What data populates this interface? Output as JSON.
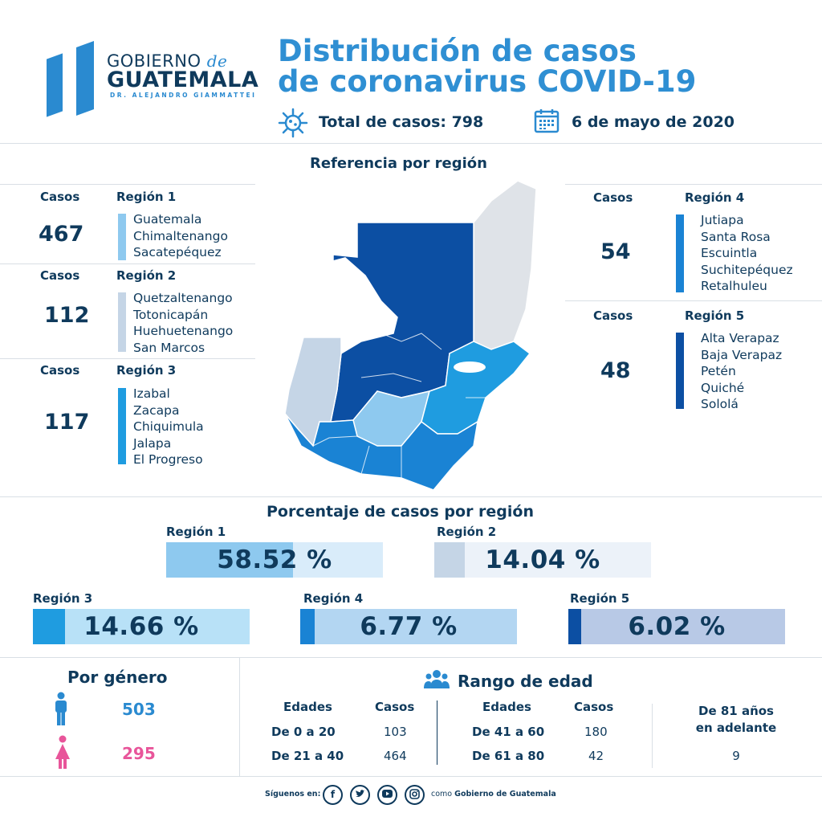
{
  "header": {
    "logo": {
      "line1": "GOBIERNO",
      "de": "de",
      "line2": "GUATEMALA",
      "line3": "DR. ALEJANDRO GIAMMATTEI"
    },
    "title_line1": "Distribución de casos",
    "title_line2": "de coronavirus COVID-19",
    "total_label": "Total de casos: 798",
    "date": "6 de mayo de 2020"
  },
  "reference": {
    "title": "Referencia por región",
    "cases_label": "Casos",
    "regions": [
      {
        "name": "Región 1",
        "cases": "467",
        "color": "#8ec9ef",
        "departments": [
          "Guatemala",
          "Chimaltenango",
          "Sacatepéquez"
        ]
      },
      {
        "name": "Región 2",
        "cases": "112",
        "color": "#c5d5e6",
        "departments": [
          "Quetzaltenango",
          "Totonicapán",
          "Huehuetenango",
          "San Marcos"
        ]
      },
      {
        "name": "Región 3",
        "cases": "117",
        "color": "#1f9ce0",
        "departments": [
          "Izabal",
          "Zacapa",
          "Chiquimula",
          "Jalapa",
          "El Progreso"
        ]
      },
      {
        "name": "Región 4",
        "cases": "54",
        "color": "#1a83d4",
        "departments": [
          "Jutiapa",
          "Santa Rosa",
          "Escuintla",
          "Suchitepéquez",
          "Retalhuleu"
        ]
      },
      {
        "name": "Región 5",
        "cases": "48",
        "color": "#0c4fa3",
        "departments": [
          "Alta Verapaz",
          "Baja Verapaz",
          "Petén",
          "Quiché",
          "Sololá"
        ]
      }
    ]
  },
  "percentages": {
    "title": "Porcentaje de casos por región",
    "items": [
      {
        "label": "Región 1",
        "value": "58.52 %",
        "fraction": 0.5852,
        "color": "#8ec9ef",
        "bg": "#d9ecfa"
      },
      {
        "label": "Región 2",
        "value": "14.04 %",
        "fraction": 0.1404,
        "color": "#c5d5e6",
        "bg": "#ecf2f9"
      },
      {
        "label": "Región 3",
        "value": "14.66 %",
        "fraction": 0.1466,
        "color": "#1f9ce0",
        "bg": "#b8e1f7"
      },
      {
        "label": "Región 4",
        "value": "6.77 %",
        "fraction": 0.0677,
        "color": "#1a83d4",
        "bg": "#b3d6f2"
      },
      {
        "label": "Región 5",
        "value": "6.02 %",
        "fraction": 0.0602,
        "color": "#0c4fa3",
        "bg": "#b8c9e6"
      }
    ]
  },
  "gender": {
    "title": "Por género",
    "male": {
      "value": "503",
      "color": "#2a8ad0",
      "icon": "male-icon"
    },
    "female": {
      "value": "295",
      "color": "#e8559a",
      "icon": "female-icon"
    }
  },
  "age": {
    "title": "Rango de edad",
    "col_age": "Edades",
    "col_cases": "Casos",
    "rows": [
      {
        "range": "De 0 a 20",
        "cases": "103"
      },
      {
        "range": "De 21 a 40",
        "cases": "464"
      },
      {
        "range": "De 41 a 60",
        "cases": "180"
      },
      {
        "range": "De 61 a 80",
        "cases": "42"
      }
    ],
    "over81_line1": "De 81 años",
    "over81_line2": "en adelante",
    "over81_value": "9"
  },
  "footer": {
    "follow": "Síguenos en:",
    "as_prefix": "como",
    "as_name": "Gobierno de Guatemala",
    "icons": [
      "facebook-icon",
      "twitter-icon",
      "youtube-icon",
      "instagram-icon"
    ]
  }
}
